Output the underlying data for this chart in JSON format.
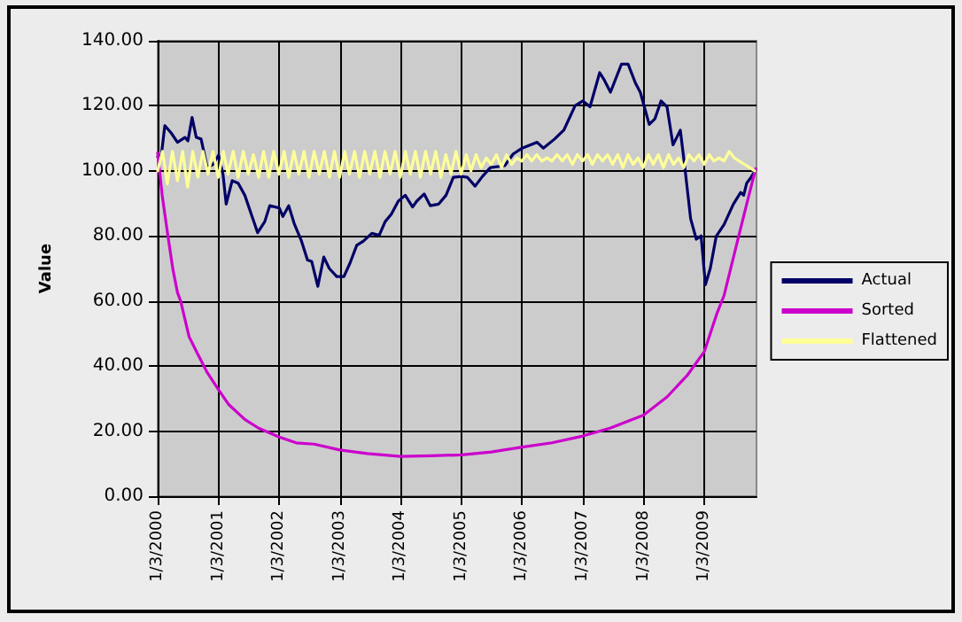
{
  "chart_data": {
    "type": "line",
    "ylabel": "Value",
    "ylim": [
      0,
      140
    ],
    "yticks": [
      {
        "value": 0,
        "label": "0.00"
      },
      {
        "value": 20,
        "label": "20.00"
      },
      {
        "value": 40,
        "label": "40.00"
      },
      {
        "value": 60,
        "label": "60.00"
      },
      {
        "value": 80,
        "label": "80.00"
      },
      {
        "value": 100,
        "label": "100.00"
      },
      {
        "value": 120,
        "label": "120.00"
      },
      {
        "value": 140,
        "label": "140.00"
      }
    ],
    "xlim": [
      "2000-01-03",
      "2009-11-12"
    ],
    "xticks": [
      {
        "value": "2000-01-03",
        "label": "1/3/2000"
      },
      {
        "value": "2001-01-03",
        "label": "1/3/2001"
      },
      {
        "value": "2002-01-03",
        "label": "1/3/2002"
      },
      {
        "value": "2003-01-03",
        "label": "1/3/2003"
      },
      {
        "value": "2004-01-03",
        "label": "1/3/2004"
      },
      {
        "value": "2005-01-03",
        "label": "1/3/2005"
      },
      {
        "value": "2006-01-03",
        "label": "1/3/2006"
      },
      {
        "value": "2007-01-03",
        "label": "1/3/2007"
      },
      {
        "value": "2008-01-03",
        "label": "1/3/2008"
      },
      {
        "value": "2009-01-03",
        "label": "1/3/2009"
      }
    ],
    "grid": true,
    "legend": "right",
    "marker": "none",
    "line_style": "solid",
    "series": [
      {
        "name": "Actual",
        "color": "#000066",
        "x": [
          "2000-01-03",
          "2000-01-25",
          "2000-02-15",
          "2000-03-25",
          "2000-05-01",
          "2000-06-15",
          "2000-07-03",
          "2000-07-28",
          "2000-08-22",
          "2000-09-20",
          "2000-10-27",
          "2000-12-01",
          "2001-01-03",
          "2001-01-30",
          "2001-02-18",
          "2001-03-26",
          "2001-05-01",
          "2001-06-10",
          "2001-08-26",
          "2001-10-08",
          "2001-11-07",
          "2002-01-03",
          "2002-01-25",
          "2002-03-01",
          "2002-04-03",
          "2002-05-17",
          "2002-06-22",
          "2002-07-17",
          "2002-08-23",
          "2002-09-28",
          "2002-10-31",
          "2002-12-15",
          "2003-01-27",
          "2003-03-05",
          "2003-04-14",
          "2003-05-24",
          "2003-07-14",
          "2003-08-27",
          "2003-10-02",
          "2003-11-08",
          "2003-12-20",
          "2004-01-31",
          "2004-03-15",
          "2004-04-09",
          "2004-05-24",
          "2004-06-29",
          "2004-08-19",
          "2004-10-02",
          "2004-11-15",
          "2005-01-03",
          "2005-02-08",
          "2005-03-26",
          "2005-05-09",
          "2005-06-26",
          "2005-09-20",
          "2005-11-10",
          "2006-01-03",
          "2006-04-03",
          "2006-05-10",
          "2006-07-17",
          "2006-09-10",
          "2006-11-17",
          "2007-01-03",
          "2007-02-15",
          "2007-04-14",
          "2007-05-12",
          "2007-06-18",
          "2007-08-23",
          "2007-10-02",
          "2007-11-15",
          "2007-12-14",
          "2008-02-06",
          "2008-03-11",
          "2008-04-17",
          "2008-05-23",
          "2008-06-28",
          "2008-08-11",
          "2008-09-06",
          "2008-10-12",
          "2008-11-15",
          "2008-12-14",
          "2009-01-09",
          "2009-02-07",
          "2009-03-15",
          "2009-05-01",
          "2009-06-26",
          "2009-08-09",
          "2009-08-27",
          "2009-09-14",
          "2009-10-10",
          "2009-11-07"
        ],
        "values": [
          104.3,
          104.8,
          113.9,
          111.6,
          108.8,
          110.3,
          109.2,
          116.4,
          110.3,
          109.8,
          101,
          102,
          104.8,
          98.9,
          89.8,
          97,
          96.2,
          92.5,
          81,
          84.4,
          89.3,
          88.6,
          86,
          89.3,
          83.8,
          78.4,
          72.6,
          72.2,
          64.5,
          73.5,
          70,
          67.5,
          67.5,
          71.7,
          77.1,
          78.4,
          80.8,
          80.2,
          84.4,
          86.7,
          90.7,
          92.5,
          88.9,
          90.7,
          92.9,
          89.3,
          89.8,
          92.5,
          98,
          98.3,
          98,
          95.3,
          98.3,
          101,
          101.6,
          105.2,
          107,
          108.8,
          107,
          109.8,
          112.5,
          120,
          121.5,
          119.7,
          130.2,
          127.9,
          124.2,
          132.8,
          132.8,
          127,
          124.2,
          114.3,
          116,
          121.5,
          119.7,
          108,
          112.5,
          101.6,
          85.3,
          79,
          80,
          65,
          70,
          79.9,
          83.5,
          89.8,
          93.4,
          92.5,
          96.2,
          98,
          100.3
        ]
      },
      {
        "name": "Sorted",
        "color": "#cc00cc",
        "x": [
          "2000-01-03",
          "2000-01-30",
          "2000-03-05",
          "2000-04-03",
          "2000-05-01",
          "2000-05-20",
          "2000-07-10",
          "2000-09-01",
          "2000-10-27",
          "2001-01-03",
          "2001-03-05",
          "2001-06-10",
          "2001-09-01",
          "2002-01-03",
          "2002-04-15",
          "2002-08-01",
          "2003-01-03",
          "2003-06-15",
          "2004-01-03",
          "2004-07-01",
          "2005-01-03",
          "2005-07-01",
          "2006-01-03",
          "2006-07-01",
          "2007-01-03",
          "2007-06-15",
          "2008-01-03",
          "2008-05-23",
          "2008-09-24",
          "2009-01-03",
          "2009-03-20",
          "2009-05-01",
          "2009-07-10",
          "2009-09-14",
          "2009-11-07"
        ],
        "values": [
          105.6,
          92.5,
          79.9,
          69.9,
          62.6,
          60,
          49,
          43.6,
          38,
          32.7,
          28.2,
          23.6,
          20.9,
          18.2,
          16.4,
          16,
          14.2,
          13.1,
          12.2,
          12.4,
          12.7,
          13.6,
          15.1,
          16.4,
          18.5,
          20.9,
          24.9,
          30.5,
          37.3,
          44.5,
          56.3,
          61.7,
          76.2,
          89.8,
          100.7
        ]
      },
      {
        "name": "Flattened",
        "color": "#ffff99",
        "x": [
          "2000-01-03",
          "2000-02",
          "2000-03",
          "2000-04",
          "2000-05",
          "2000-06",
          "2000-07",
          "2000-08",
          "2000-09",
          "2000-10",
          "2000-11",
          "2000-12",
          "2001-01",
          "2001-02",
          "2001-03",
          "2001-04",
          "2001-05",
          "2001-06",
          "2001-07",
          "2001-08",
          "2001-09",
          "2001-10",
          "2001-11",
          "2001-12",
          "2002-01",
          "2002-02",
          "2002-03",
          "2002-04",
          "2002-05",
          "2002-06",
          "2002-07",
          "2002-08",
          "2002-09",
          "2002-10",
          "2002-11",
          "2002-12",
          "2003-01",
          "2003-02",
          "2003-03",
          "2003-04",
          "2003-05",
          "2003-06",
          "2003-07",
          "2003-08",
          "2003-09",
          "2003-10",
          "2003-11",
          "2003-12",
          "2004-01",
          "2004-02",
          "2004-03",
          "2004-04",
          "2004-05",
          "2004-06",
          "2004-07",
          "2004-08",
          "2004-09",
          "2004-10",
          "2004-11",
          "2004-12",
          "2005-01",
          "2005-02",
          "2005-03",
          "2005-04",
          "2005-05",
          "2005-06",
          "2005-07",
          "2005-08",
          "2005-09",
          "2005-10",
          "2005-11",
          "2005-12",
          "2006-01",
          "2006-02",
          "2006-03",
          "2006-04",
          "2006-05",
          "2006-06",
          "2006-07",
          "2006-08",
          "2006-09",
          "2006-10",
          "2006-11",
          "2006-12",
          "2007-01",
          "2007-02",
          "2007-03",
          "2007-04",
          "2007-05",
          "2007-06",
          "2007-07",
          "2007-08",
          "2007-09",
          "2007-10",
          "2007-11",
          "2007-12",
          "2008-01",
          "2008-02",
          "2008-03",
          "2008-04",
          "2008-05",
          "2008-06",
          "2008-07",
          "2008-08",
          "2008-09",
          "2008-10",
          "2008-11",
          "2008-12",
          "2009-01",
          "2009-02",
          "2009-03",
          "2009-04",
          "2009-05",
          "2009-06",
          "2009-07",
          "2009-08",
          "2009-09",
          "2009-10",
          "2009-11"
        ],
        "values": [
          100,
          106,
          96,
          106,
          97,
          106,
          95,
          106,
          98,
          106,
          99,
          106,
          98,
          106,
          99,
          106,
          98,
          106,
          99,
          105,
          98,
          106,
          98,
          106,
          99,
          106,
          98,
          106,
          99,
          106,
          98,
          106,
          99,
          106,
          98,
          106,
          98,
          106,
          99,
          106,
          98,
          106,
          99,
          106,
          98,
          106,
          99,
          106,
          98,
          106,
          99,
          106,
          98,
          106,
          99,
          106,
          98,
          105,
          99,
          106,
          99,
          105,
          100,
          105,
          101,
          104,
          102,
          105,
          101,
          105,
          102,
          104,
          103,
          105,
          103,
          105,
          103,
          104,
          103,
          105,
          103,
          105,
          102,
          105,
          103,
          105,
          102,
          105,
          103,
          105,
          102,
          105,
          101,
          105,
          102,
          104,
          101,
          105,
          102,
          105,
          101,
          105,
          102,
          104,
          101,
          105,
          103,
          105,
          102,
          105,
          103,
          104,
          103,
          106,
          104,
          103,
          102,
          101,
          100
        ]
      }
    ]
  }
}
